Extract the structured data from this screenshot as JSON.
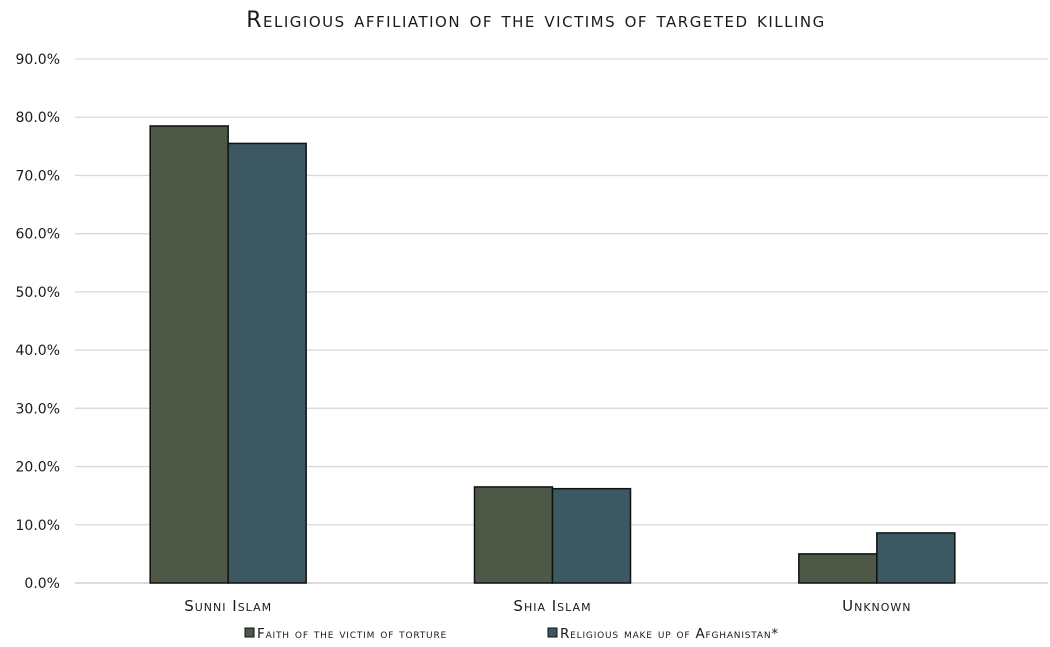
{
  "chart_data": {
    "type": "bar",
    "title": "Religious affiliation of the victims of targeted killing",
    "categories": [
      "Sunni Islam",
      "Shia Islam",
      "Unknown"
    ],
    "series": [
      {
        "name": "Faith of the victim of torture",
        "values": [
          78.5,
          16.5,
          5.0
        ],
        "color": "#4d5946"
      },
      {
        "name": "Religious make up of Afghanistan*",
        "values": [
          75.5,
          16.2,
          8.6
        ],
        "color": "#3b5863"
      }
    ],
    "ylim": [
      0,
      90
    ],
    "yticks": [
      0,
      10,
      20,
      30,
      40,
      50,
      60,
      70,
      80,
      90
    ],
    "ytick_labels": [
      "0.0%",
      "10.0%",
      "20.0%",
      "30.0%",
      "40.0%",
      "50.0%",
      "60.0%",
      "70.0%",
      "80.0%",
      "90.0%"
    ],
    "xlabel": "",
    "ylabel": "",
    "grid": true,
    "legend": "bottom-center"
  }
}
